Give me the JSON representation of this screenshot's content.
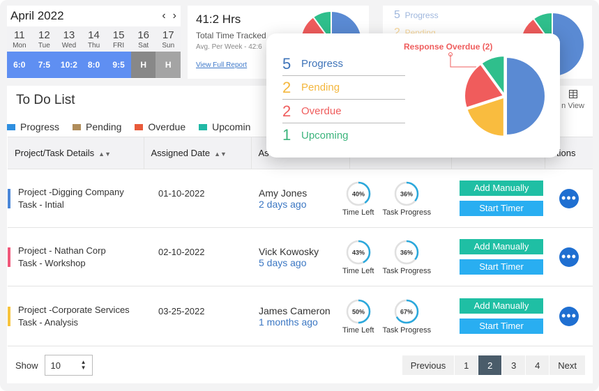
{
  "calendar": {
    "month": "April 2022",
    "prev": "‹",
    "next": "›",
    "days": [
      {
        "num": "11",
        "dow": "Mon",
        "hours": "6:0",
        "kind": "work"
      },
      {
        "num": "12",
        "dow": "Tue",
        "hours": "7:5",
        "kind": "work"
      },
      {
        "num": "13",
        "dow": "Wed",
        "hours": "10:2",
        "kind": "work"
      },
      {
        "num": "14",
        "dow": "Thu",
        "hours": "8:0",
        "kind": "work"
      },
      {
        "num": "15",
        "dow": "FRI",
        "hours": "9:5",
        "kind": "work"
      },
      {
        "num": "16",
        "dow": "Sat",
        "hours": "H",
        "kind": "holiday"
      },
      {
        "num": "17",
        "dow": "Sun",
        "hours": "H",
        "kind": "holiday-light"
      }
    ]
  },
  "time_card": {
    "total": "41:2 Hrs",
    "label": "Total Time Tracked",
    "avg": "Avg. Per Week - 42:6",
    "link": "View Full Report"
  },
  "status_card": {
    "progress_num": "5",
    "progress_label": "Progress",
    "pending_num": "2",
    "pending_label": "Pending"
  },
  "popover": {
    "callout": "Response Overdue (2)",
    "rows": [
      {
        "num": "5",
        "label": "Progress",
        "color": "#3f74b9"
      },
      {
        "num": "2",
        "label": "Pending",
        "color": "#f4b73e"
      },
      {
        "num": "2",
        "label": "Overdue",
        "color": "#ef5d5d"
      },
      {
        "num": "1",
        "label": "Upcoming",
        "color": "#3cb47c"
      }
    ]
  },
  "chart_data": {
    "type": "pie",
    "slices": [
      {
        "label": "Progress",
        "value": 5,
        "color": "#5a8ad3"
      },
      {
        "label": "Pending",
        "value": 2,
        "color": "#f9bc3f"
      },
      {
        "label": "Overdue",
        "value": 2,
        "color": "#f05c5c"
      },
      {
        "label": "Upcoming",
        "value": 1,
        "color": "#2fbf8c"
      }
    ],
    "annotation": "Response Overdue (2)"
  },
  "todo": {
    "title": "To Do List",
    "view_label": "n View",
    "legend": [
      {
        "label": "Progress",
        "color": "#2f8fe0"
      },
      {
        "label": "Pending",
        "color": "#b08d5b"
      },
      {
        "label": "Overdue",
        "color": "#e85a3a"
      },
      {
        "label": "Upcomin",
        "color": "#21b9a6"
      }
    ],
    "headers": {
      "project": "Project/Task Details",
      "date": "Assigned Date",
      "assignee": "As",
      "actions": "ctions"
    },
    "labels": {
      "time_left": "Time Left",
      "task_progress": "Task Progress",
      "add_manually": "Add Manually",
      "start_timer": "Start Timer"
    },
    "rows": [
      {
        "project": "Project -Digging Company",
        "task": "Task - Intial",
        "date": "01-10-2022",
        "name": "Amy Jones",
        "when": "2 days ago",
        "time_left": "40%",
        "time_left_pct": 40,
        "progress": "36%",
        "progress_pct": 36,
        "bar_color": "#4a86d8"
      },
      {
        "project": "Project - Nathan Corp",
        "task": "Task - Workshop",
        "date": "02-10-2022",
        "name": "Vick Kowosky",
        "when": "5 days ago",
        "time_left": "43%",
        "time_left_pct": 43,
        "progress": "36%",
        "progress_pct": 36,
        "bar_color": "#f0577a"
      },
      {
        "project": "Project -Corporate Services",
        "task": "Task - Analysis",
        "date": "03-25-2022",
        "name": "James Cameron",
        "when": "1 months ago",
        "time_left": "50%",
        "time_left_pct": 50,
        "progress": "67%",
        "progress_pct": 67,
        "bar_color": "#f7c33c"
      }
    ]
  },
  "footer": {
    "show_label": "Show",
    "page_size": "10",
    "pages": [
      "Previous",
      "1",
      "2",
      "3",
      "4",
      "Next"
    ],
    "active_page": "2"
  }
}
